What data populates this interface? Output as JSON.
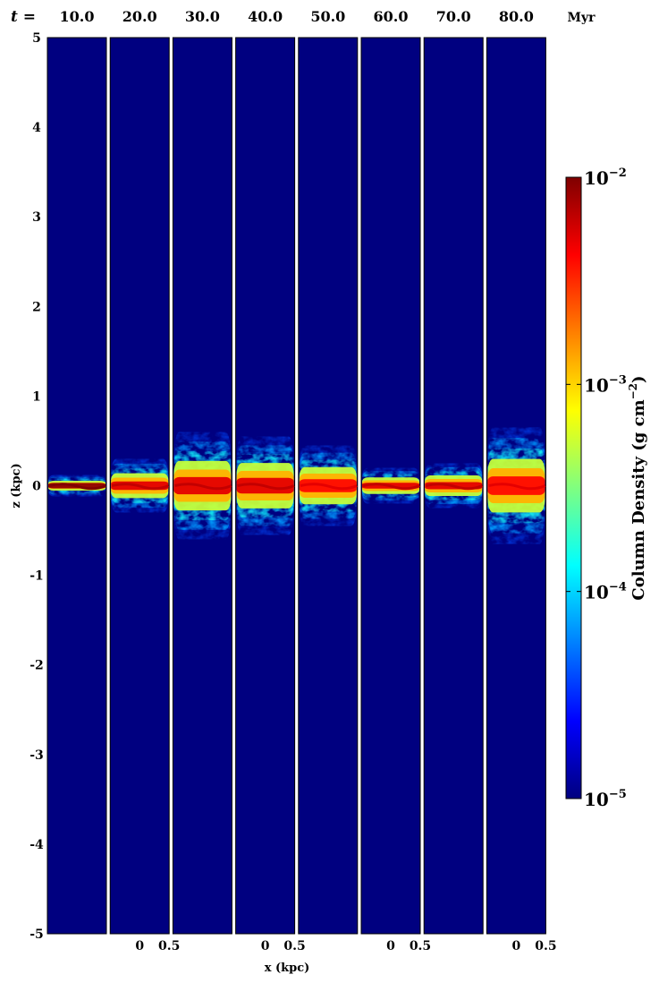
{
  "chart_data": {
    "type": "heatmap",
    "time_prefix": "t =",
    "time_unit": "Myr",
    "panels": [
      {
        "t": "10.0",
        "disk_halfwidth_kpc": 0.12,
        "peak_log": -2.05
      },
      {
        "t": "20.0",
        "disk_halfwidth_kpc": 0.3,
        "peak_log": -2.3
      },
      {
        "t": "30.0",
        "disk_halfwidth_kpc": 0.6,
        "peak_log": -2.3
      },
      {
        "t": "40.0",
        "disk_halfwidth_kpc": 0.55,
        "peak_log": -2.3
      },
      {
        "t": "50.0",
        "disk_halfwidth_kpc": 0.45,
        "peak_log": -2.4
      },
      {
        "t": "60.0",
        "disk_halfwidth_kpc": 0.2,
        "peak_log": -2.3
      },
      {
        "t": "70.0",
        "disk_halfwidth_kpc": 0.25,
        "peak_log": -2.3
      },
      {
        "t": "80.0",
        "disk_halfwidth_kpc": 0.65,
        "peak_log": -2.4
      }
    ],
    "ylabel": "z (kpc)",
    "xlabel": "x (kpc)",
    "ylim": [
      -5,
      5
    ],
    "yticks": [
      "5",
      "4",
      "3",
      "2",
      "1",
      "0",
      "-1",
      "-2",
      "-3",
      "-4",
      "-5"
    ],
    "xlim": [
      -0.5,
      0.5
    ],
    "xticks": [
      "0",
      "0.5",
      "0",
      "0.5",
      "0",
      "0.5",
      "0",
      "0.5"
    ],
    "colorbar": {
      "label": "Column Density (g cm",
      "label_exp": "−2",
      "label_close": ")",
      "scale": "log",
      "range": [
        1e-05,
        0.01
      ],
      "ticks": [
        {
          "base": "10",
          "exp": "−2",
          "log": -2
        },
        {
          "base": "10",
          "exp": "−3",
          "log": -3
        },
        {
          "base": "10",
          "exp": "−4",
          "log": -4
        },
        {
          "base": "10",
          "exp": "−5",
          "log": -5
        }
      ],
      "colormap": "jet"
    }
  }
}
